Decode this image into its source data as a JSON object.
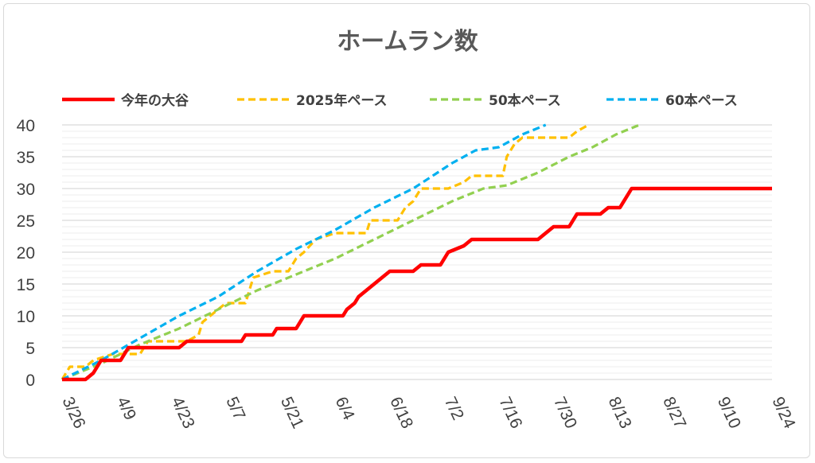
{
  "chart_data": {
    "type": "line",
    "title": "ホームラン数",
    "xlabel": "",
    "ylabel": "",
    "ylim": [
      0,
      40
    ],
    "y_ticks": [
      "0",
      "5",
      "10",
      "15",
      "20",
      "25",
      "30",
      "35",
      "40"
    ],
    "x_tick_labels": [
      "3/26",
      "4/9",
      "4/23",
      "5/7",
      "5/21",
      "6/4",
      "6/18",
      "7/2",
      "7/16",
      "7/30",
      "8/13",
      "8/27",
      "9/10",
      "9/24"
    ],
    "xlim_days": [
      0,
      182
    ],
    "grid": "horizontal",
    "legend_position": "top",
    "series": [
      {
        "name": "今年の大谷",
        "color": "#ff0000",
        "style": "solid",
        "points": [
          [
            0,
            0
          ],
          [
            6,
            0
          ],
          [
            8,
            1
          ],
          [
            9,
            2
          ],
          [
            10,
            3
          ],
          [
            15,
            3
          ],
          [
            17,
            5
          ],
          [
            30,
            5
          ],
          [
            32,
            6
          ],
          [
            46,
            6
          ],
          [
            47,
            7
          ],
          [
            54,
            7
          ],
          [
            55,
            8
          ],
          [
            60,
            8
          ],
          [
            61,
            9
          ],
          [
            62,
            10
          ],
          [
            72,
            10
          ],
          [
            73,
            11
          ],
          [
            75,
            12
          ],
          [
            76,
            13
          ],
          [
            78,
            14
          ],
          [
            80,
            15
          ],
          [
            82,
            16
          ],
          [
            84,
            17
          ],
          [
            90,
            17
          ],
          [
            92,
            18
          ],
          [
            97,
            18
          ],
          [
            99,
            20
          ],
          [
            103,
            21
          ],
          [
            105,
            22
          ],
          [
            122,
            22
          ],
          [
            124,
            23
          ],
          [
            126,
            24
          ],
          [
            130,
            24
          ],
          [
            132,
            26
          ],
          [
            138,
            26
          ],
          [
            140,
            27
          ],
          [
            143,
            27
          ],
          [
            145,
            29
          ],
          [
            146,
            30
          ],
          [
            182,
            30
          ]
        ]
      },
      {
        "name": "2025年ペース",
        "color": "#ffc000",
        "style": "dashed",
        "points": [
          [
            0,
            0
          ],
          [
            2,
            2
          ],
          [
            6,
            2
          ],
          [
            8,
            3
          ],
          [
            13,
            4
          ],
          [
            20,
            4
          ],
          [
            22,
            6
          ],
          [
            32,
            6
          ],
          [
            35,
            7
          ],
          [
            36,
            9
          ],
          [
            38,
            10
          ],
          [
            40,
            11
          ],
          [
            42,
            12
          ],
          [
            47,
            12
          ],
          [
            49,
            16
          ],
          [
            54,
            17
          ],
          [
            58,
            17
          ],
          [
            60,
            19
          ],
          [
            62,
            20
          ],
          [
            65,
            22
          ],
          [
            70,
            23
          ],
          [
            78,
            23
          ],
          [
            79,
            25
          ],
          [
            86,
            25
          ],
          [
            88,
            27
          ],
          [
            90,
            28
          ],
          [
            92,
            30
          ],
          [
            99,
            30
          ],
          [
            103,
            31
          ],
          [
            105,
            32
          ],
          [
            113,
            32
          ],
          [
            114,
            35
          ],
          [
            116,
            37
          ],
          [
            118,
            38
          ],
          [
            130,
            38
          ],
          [
            132,
            39
          ],
          [
            135,
            40
          ]
        ]
      },
      {
        "name": "50本ペース",
        "color": "#92d050",
        "style": "dashed",
        "points": [
          [
            0,
            0
          ],
          [
            10,
            2.5
          ],
          [
            20,
            5.5
          ],
          [
            30,
            8
          ],
          [
            40,
            11
          ],
          [
            50,
            14
          ],
          [
            60,
            16.5
          ],
          [
            70,
            19
          ],
          [
            80,
            22
          ],
          [
            90,
            25
          ],
          [
            100,
            28
          ],
          [
            108,
            30
          ],
          [
            114,
            30.5
          ],
          [
            122,
            32.5
          ],
          [
            130,
            35
          ],
          [
            136,
            36.5
          ],
          [
            142,
            38.5
          ],
          [
            148,
            40
          ]
        ]
      },
      {
        "name": "60本ペース",
        "color": "#00b0f0",
        "style": "dashed",
        "points": [
          [
            0,
            0
          ],
          [
            10,
            3
          ],
          [
            20,
            6.5
          ],
          [
            30,
            10
          ],
          [
            40,
            13
          ],
          [
            50,
            17
          ],
          [
            60,
            20.5
          ],
          [
            70,
            23.5
          ],
          [
            80,
            27
          ],
          [
            90,
            30
          ],
          [
            100,
            34
          ],
          [
            106,
            36
          ],
          [
            112,
            36.5
          ],
          [
            118,
            38.5
          ],
          [
            124,
            40
          ]
        ]
      }
    ]
  }
}
